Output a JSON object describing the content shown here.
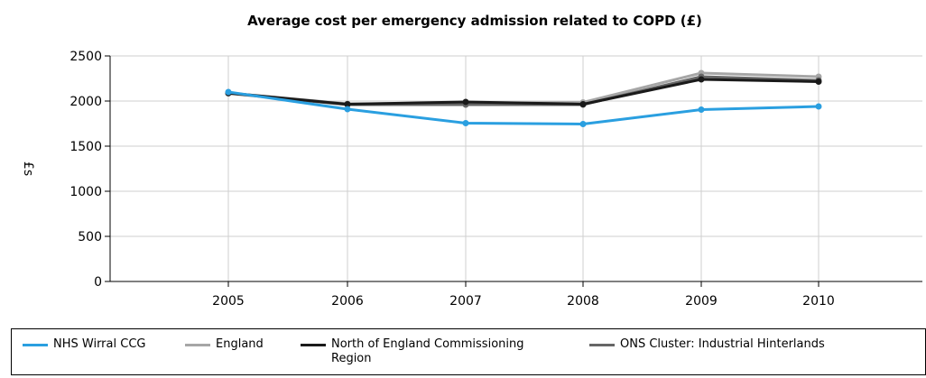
{
  "chart_data": {
    "type": "line",
    "title": "Average cost per emergency admission related to COPD (£)",
    "xlabel": "",
    "ylabel": "£s",
    "categories": [
      "2005",
      "2006",
      "2007",
      "2008",
      "2009",
      "2010"
    ],
    "ylim": [
      0,
      2500
    ],
    "yticks": [
      0,
      500,
      1000,
      1500,
      2000,
      2500
    ],
    "grid": true,
    "legend_position": "bottom",
    "series": [
      {
        "name": "NHS Wirral CCG",
        "color": "#2a9fe0",
        "values": [
          2100,
          1910,
          1755,
          1745,
          1905,
          1940
        ]
      },
      {
        "name": "England",
        "color": "#a6a6a6",
        "values": [
          2090,
          1970,
          1975,
          1985,
          2310,
          2270
        ]
      },
      {
        "name": "North of England Commissioning Region",
        "color": "#1a1a1a",
        "values": [
          2090,
          1965,
          1990,
          1965,
          2240,
          2215
        ]
      },
      {
        "name": "ONS Cluster: Industrial Hinterlands",
        "color": "#666666",
        "values": [
          2085,
          1960,
          1960,
          1960,
          2270,
          2230
        ]
      }
    ]
  }
}
